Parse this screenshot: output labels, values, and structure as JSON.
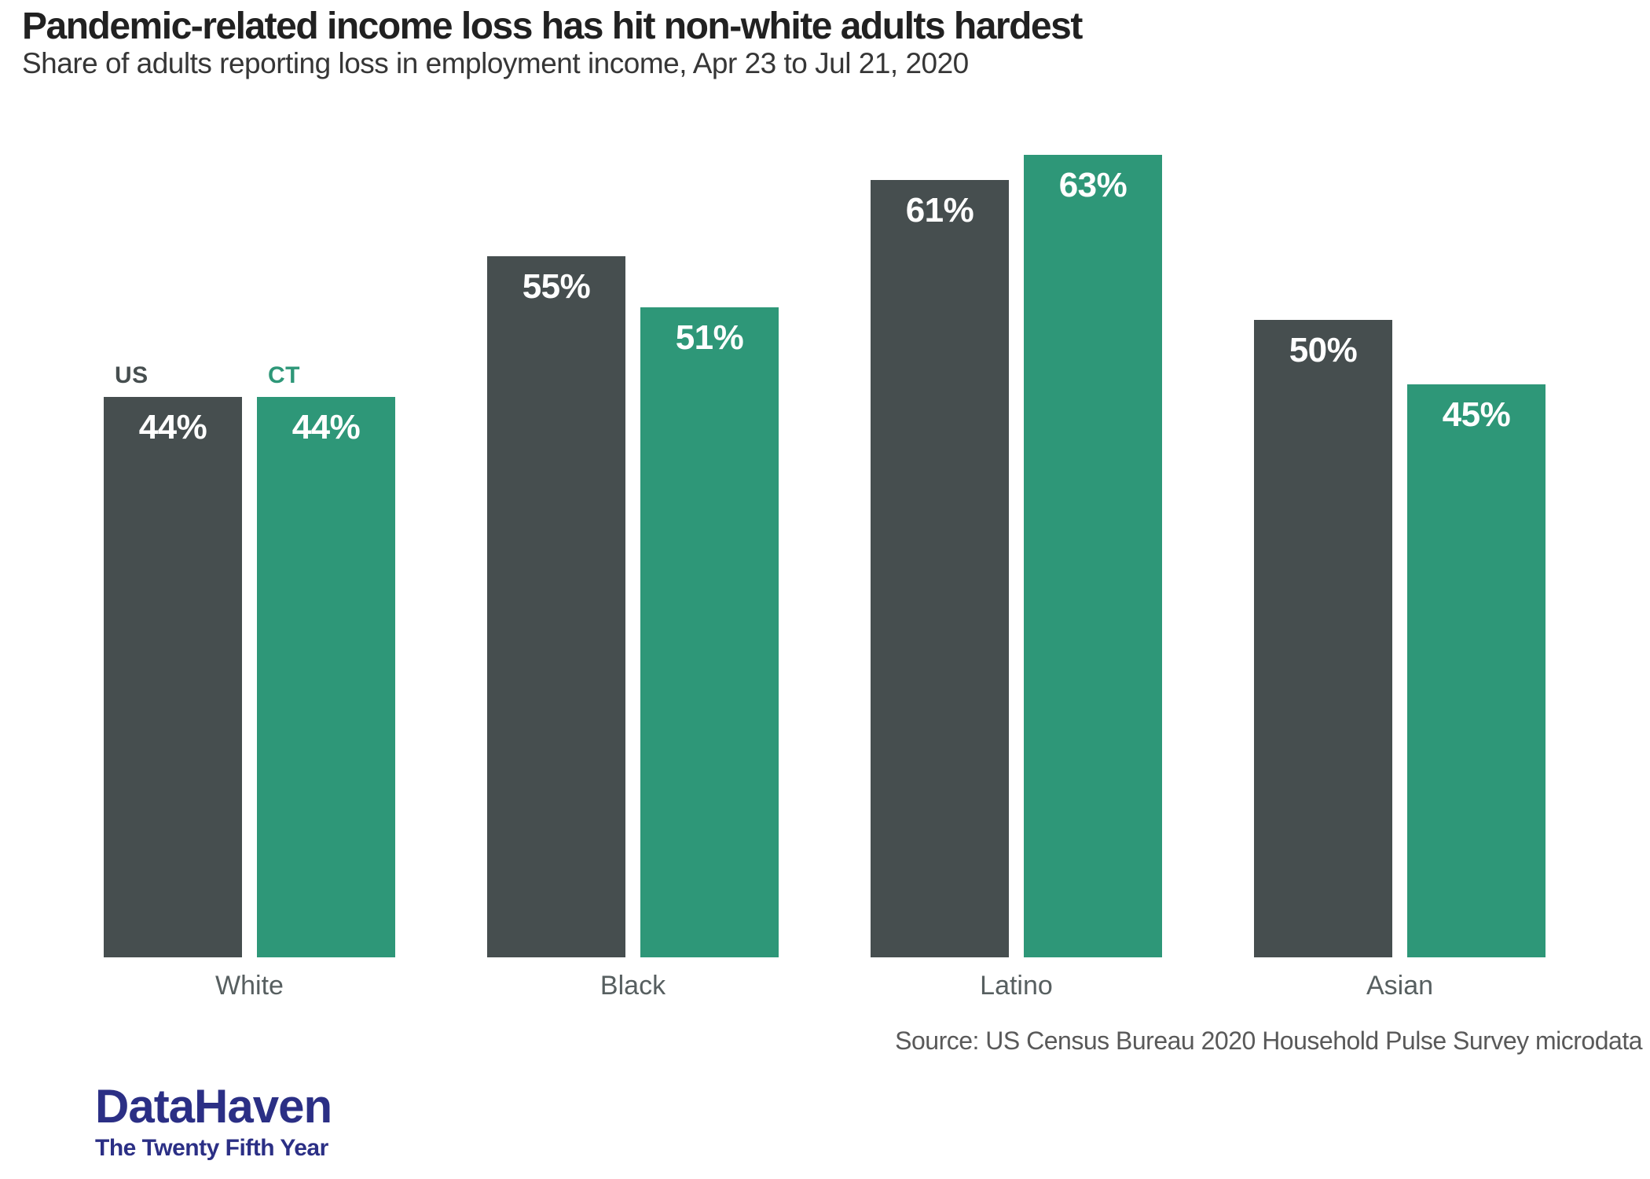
{
  "header": {
    "title": "Pandemic-related income loss has hit non-white adults hardest",
    "subtitle": "Share of adults reporting loss in employment income, Apr 23 to Jul 21, 2020"
  },
  "chart_data": {
    "type": "bar",
    "categories": [
      "White",
      "Black",
      "Latino",
      "Asian"
    ],
    "series": [
      {
        "name": "US",
        "color": "#464E4F",
        "values": [
          44,
          55,
          61,
          50
        ]
      },
      {
        "name": "CT",
        "color": "#2E9778",
        "values": [
          44,
          51,
          63,
          45
        ]
      }
    ],
    "value_suffix": "%",
    "value_labels": "inside top of each bar, white bold",
    "legend": "US and CT labels shown above first pair of bars only",
    "ylim": [
      0,
      75
    ],
    "grid": false,
    "axes": "no visible axes or gridlines; white background"
  },
  "colors": {
    "us_bar": "#464E4F",
    "ct_bar": "#2E9778",
    "title_text": "#212121",
    "subtitle_text": "#363636",
    "category_label": "#575F60",
    "source_text": "#595959",
    "logo_navy": "#2B2F85",
    "background": "#FFFFFF"
  },
  "footer": {
    "source": "Source: US Census Bureau 2020 Household Pulse Survey microdata",
    "logo": {
      "name": "DataHaven",
      "tagline": "The Twenty Fifth Year"
    }
  }
}
